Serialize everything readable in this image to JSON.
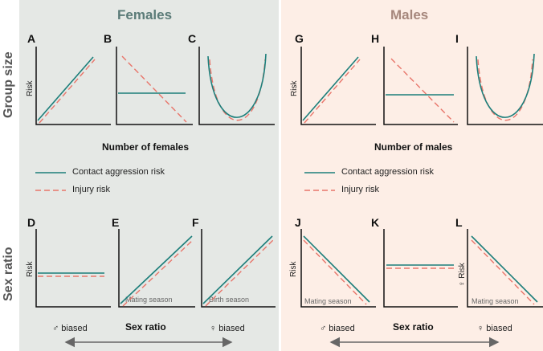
{
  "females": {
    "title": "Females",
    "x_axis": "Number of females",
    "panels": {
      "A": "A",
      "B": "B",
      "C": "C",
      "D": "D",
      "E": "E",
      "F": "F"
    },
    "notes": {
      "E": "Mating season",
      "F": "Birth season"
    }
  },
  "males": {
    "title": "Males",
    "x_axis": "Number of males",
    "panels": {
      "G": "G",
      "H": "H",
      "I": "I",
      "J": "J",
      "K": "K",
      "L": "L"
    },
    "notes": {
      "J": "Mating season",
      "L": "Mating season"
    }
  },
  "rows": {
    "group": "Group size",
    "sex": "Sex ratio"
  },
  "y_label": "Risk",
  "y_label_female": "♀ Risk",
  "legend": {
    "contact": "Contact aggression risk",
    "injury": "Injury risk"
  },
  "sex_ratio": {
    "label": "Sex ratio",
    "male_biased": "♂ biased",
    "female_biased": "♀ biased"
  },
  "colors": {
    "contact": "#1c7e7a",
    "injury": "#e8756a"
  }
}
